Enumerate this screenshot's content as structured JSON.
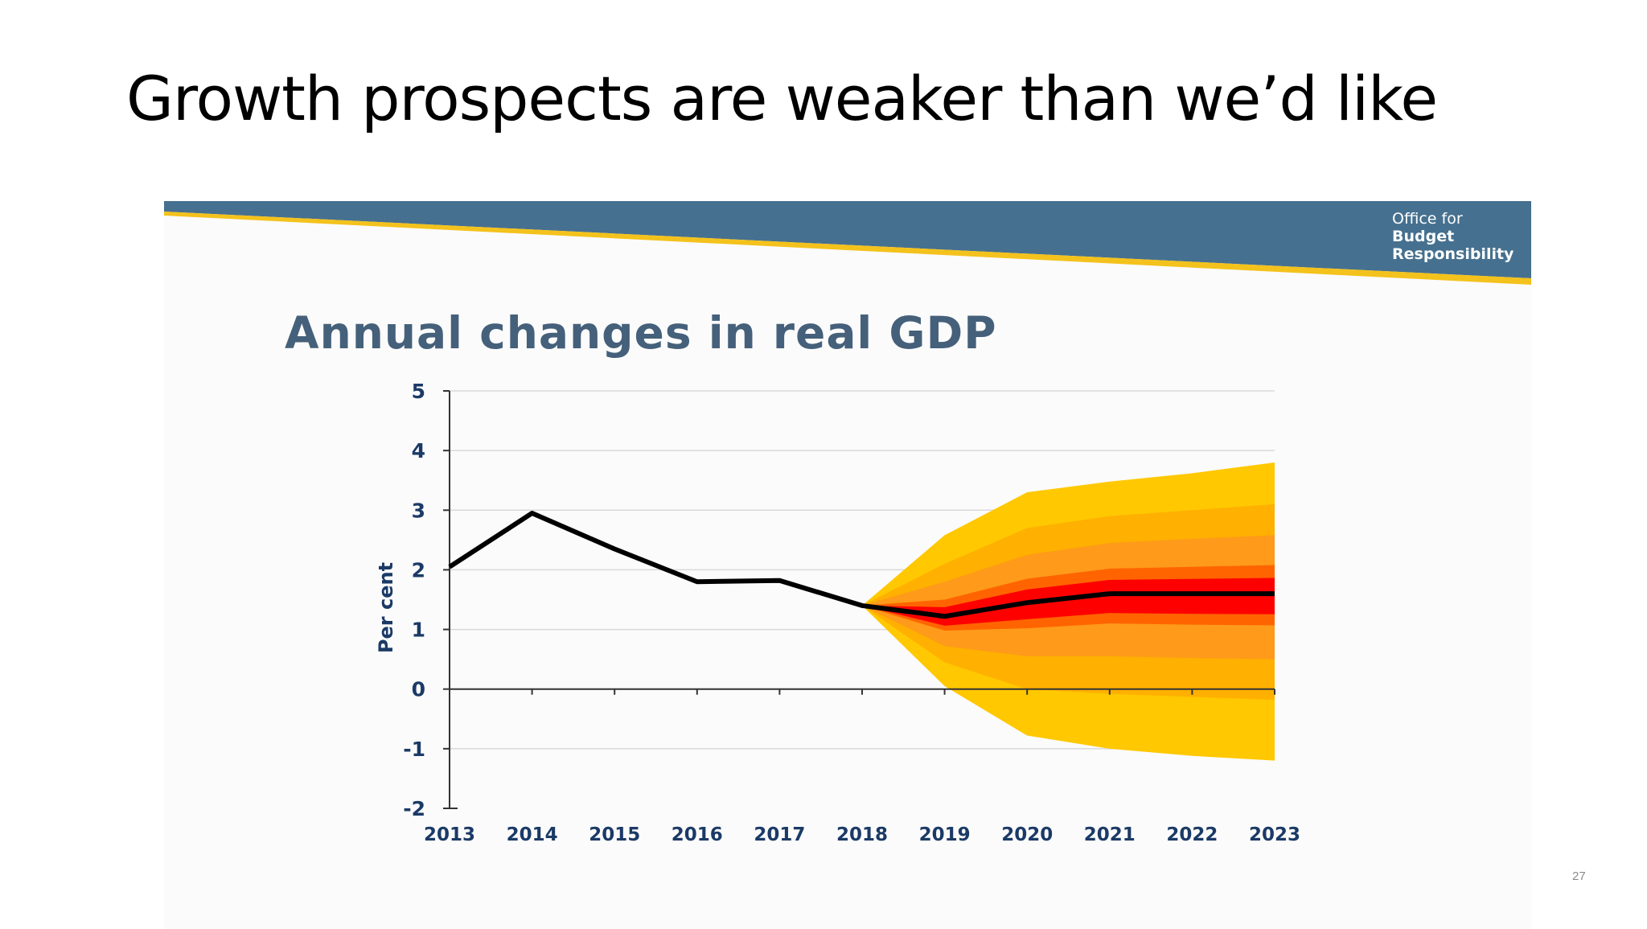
{
  "slide": {
    "title": "Growth prospects are weaker than we’d like",
    "page_number": "27"
  },
  "logo": {
    "line1": "Office for",
    "line2": "Budget",
    "line3": "Responsibility"
  },
  "colors": {
    "banner": "#46708f",
    "banner_stripe": "#f4c21c",
    "title": "#45607a",
    "axis_text": "#1b3a66",
    "line": "#000000",
    "fan_outer": "#ffc800",
    "fan_2": "#ffb000",
    "fan_3": "#ff9a1a",
    "fan_4": "#ff6400",
    "fan_inner": "#ff0000"
  },
  "chart_data": {
    "type": "line",
    "title": "Annual changes in real GDP",
    "xlabel": "",
    "ylabel": "Per cent",
    "x": [
      2013,
      2014,
      2015,
      2016,
      2017,
      2018,
      2019,
      2020,
      2021,
      2022,
      2023
    ],
    "xlim": [
      2013,
      2023
    ],
    "ylim": [
      -2,
      5
    ],
    "yticks": [
      5,
      4,
      3,
      2,
      1,
      0,
      -1,
      -2
    ],
    "grid": "horizontal",
    "legend": "none",
    "series": [
      {
        "values": [
          2.05,
          2.95,
          2.35,
          1.8,
          1.82,
          1.4,
          1.22,
          1.45,
          1.6,
          1.6,
          1.6
        ]
      }
    ],
    "fan_bands": [
      {
        "upper": [
          1.4,
          2.58,
          3.3,
          3.48,
          3.62,
          3.8
        ],
        "lower": [
          1.4,
          0.05,
          -0.78,
          -1.0,
          -1.12,
          -1.2
        ],
        "color_key": "fan_outer"
      },
      {
        "upper": [
          1.4,
          2.1,
          2.7,
          2.9,
          3.0,
          3.1
        ],
        "lower": [
          1.4,
          0.45,
          0.0,
          -0.08,
          -0.13,
          -0.18
        ],
        "color_key": "fan_2"
      },
      {
        "upper": [
          1.4,
          1.8,
          2.25,
          2.45,
          2.52,
          2.58
        ],
        "lower": [
          1.4,
          0.72,
          0.55,
          0.55,
          0.52,
          0.5
        ],
        "color_key": "fan_3"
      },
      {
        "upper": [
          1.4,
          1.5,
          1.85,
          2.02,
          2.05,
          2.08
        ],
        "lower": [
          1.4,
          0.98,
          1.02,
          1.1,
          1.08,
          1.07
        ],
        "color_key": "fan_4"
      }
    ],
    "fan_x": [
      2018,
      2019,
      2020,
      2021,
      2022,
      2023
    ]
  }
}
